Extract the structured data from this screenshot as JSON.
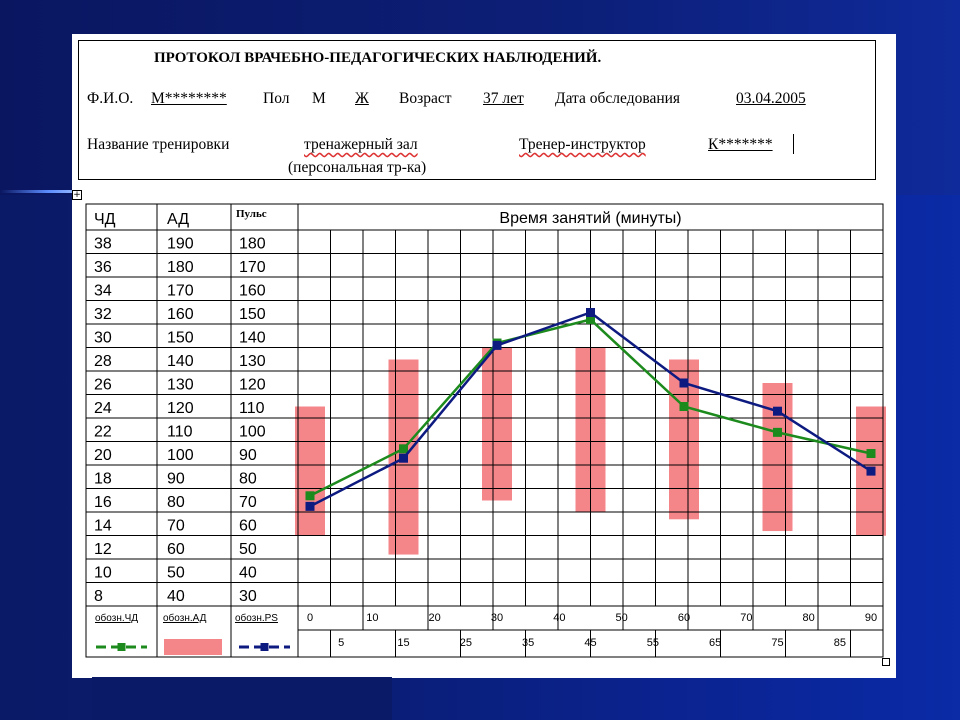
{
  "header": {
    "title": "ПРОТОКОЛ ВРАЧЕБНО-ПЕДАГОГИЧЕСКИХ НАБЛЮДЕНИЙ.",
    "fio_label": "Ф.И.О.",
    "fio_value": "М********",
    "sex_label": "Пол",
    "sex_m": "М",
    "sex_f": "Ж",
    "age_label": "Возраст",
    "age_value": "37 лет",
    "date_label": "Дата обследования",
    "date_value": "03.04.2005",
    "training_label": "Название тренировки",
    "training_value": "тренажерный зал",
    "training_note": "(персональная тр-ка)",
    "trainer_label": "Тренер-инструктор",
    "trainer_value": "К*******"
  },
  "table": {
    "col_chd": "ЧД",
    "col_ad": "АД",
    "col_pulse": "Пульс",
    "time_header": "Время занятий (минуты)",
    "chd_values": [
      "38",
      "36",
      "34",
      "32",
      "30",
      "28",
      "26",
      "24",
      "22",
      "20",
      "18",
      "16",
      "14",
      "12",
      "10",
      "8"
    ],
    "ad_values": [
      "190",
      "180",
      "170",
      "160",
      "150",
      "140",
      "130",
      "120",
      "110",
      "100",
      "90",
      "80",
      "70",
      "60",
      "50",
      "40"
    ],
    "pulse_values": [
      "180",
      "170",
      "160",
      "150",
      "140",
      "130",
      "120",
      "110",
      "100",
      "90",
      "80",
      "70",
      "60",
      "50",
      "40",
      "30"
    ],
    "time_ticks_top": [
      "0",
      "10",
      "20",
      "30",
      "40",
      "50",
      "60",
      "70",
      "80",
      "90"
    ],
    "time_ticks_bottom": [
      "5",
      "15",
      "25",
      "35",
      "45",
      "55",
      "65",
      "75",
      "85"
    ]
  },
  "legend": {
    "chd_label": "обозн.ЧД",
    "ad_label": "обозн.АД",
    "ps_label": "обозн.PS"
  },
  "colors": {
    "chd_line": "#1c8a1c",
    "ad_bar": "#f4868a",
    "ps_line": "#0d1a80",
    "grid": "#000000"
  },
  "chart_data": {
    "type": "line",
    "title": "Время занятий (минуты)",
    "x_unit": "минуты",
    "xlim": [
      0,
      90
    ],
    "scales": {
      "chd": [
        8,
        38
      ],
      "ad": [
        40,
        190
      ],
      "pulse": [
        30,
        180
      ]
    },
    "series": [
      {
        "name": "обозн.ЧД",
        "scale": "chd",
        "marker": "square",
        "x": [
          0,
          15,
          30,
          45,
          60,
          75,
          90
        ],
        "values": [
          16.4,
          20.4,
          29.4,
          31.4,
          24.0,
          21.8,
          20.0
        ]
      },
      {
        "name": "обозн.PS",
        "scale": "pulse",
        "marker": "square",
        "x": [
          0,
          15,
          30,
          45,
          60,
          75,
          90
        ],
        "values": [
          67.5,
          88,
          136,
          150,
          120,
          108,
          82.5
        ]
      }
    ],
    "ad_ranges": {
      "name": "обозн.АД",
      "scale": "ad",
      "x": [
        0,
        15,
        30,
        45,
        60,
        75,
        90
      ],
      "systolic": [
        120,
        140,
        145,
        145,
        140,
        130,
        120
      ],
      "diastolic": [
        65,
        57,
        80,
        75,
        72,
        67,
        65
      ]
    }
  }
}
